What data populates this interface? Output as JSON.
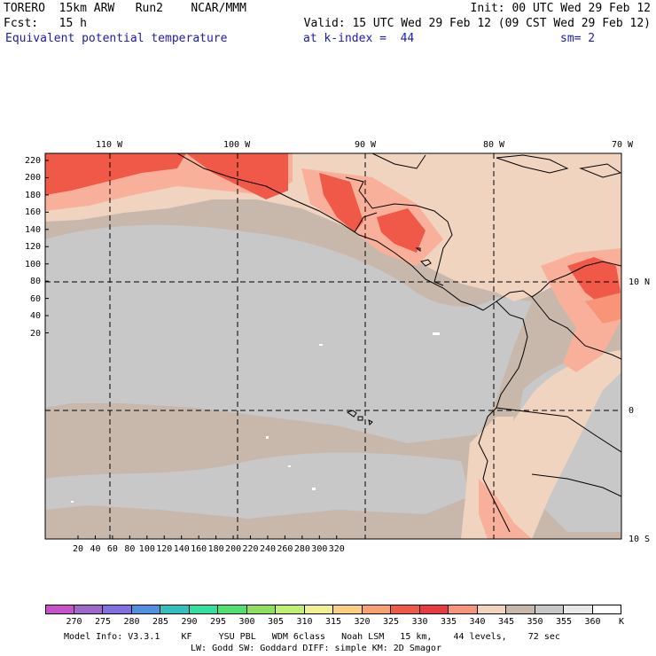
{
  "header": {
    "line1_left": "TORERO  15km ARW   Run2    NCAR/MMM",
    "line1_right": "Init: 00 UTC Wed 29 Feb 12",
    "line2_left": "Fcst:   15 h",
    "line2_right": "Valid: 15 UTC Wed 29 Feb 12 (09 CST Wed 29 Feb 12)",
    "field_name": "Equivalent potential temperature",
    "level": "at k-index =  44",
    "smoothing": "sm= 2"
  },
  "map": {
    "lon_labels": [
      "110 W",
      "100 W",
      "90 W",
      "80 W",
      "70 W"
    ],
    "lat_labels_right": [
      "10 N",
      "0",
      "10 S"
    ],
    "y_ticks": [
      "220",
      "200",
      "180",
      "160",
      "140",
      "120",
      "100",
      "80",
      "60",
      "40",
      "20"
    ],
    "x_ticks": [
      "20",
      "40",
      "60",
      "80",
      "100",
      "120",
      "140",
      "160",
      "180",
      "200",
      "220",
      "240",
      "260",
      "280",
      "300",
      "320"
    ],
    "colors": {
      "base": "#c8b8ac",
      "gray": "#c8c8c8",
      "peach": "#f0d4c0",
      "salmon_light": "#f8b09a",
      "salmon": "#f89478",
      "red": "#f05848",
      "red_dark": "#e83a40",
      "white": "#ffffff"
    }
  },
  "colorbar": {
    "labels": [
      "270",
      "275",
      "280",
      "285",
      "290",
      "295",
      "300",
      "305",
      "310",
      "315",
      "320",
      "325",
      "330",
      "335",
      "340",
      "345",
      "350",
      "355",
      "360"
    ],
    "unit": "K",
    "colors": [
      "#c850c8",
      "#a068c8",
      "#8070e0",
      "#5090e0",
      "#30c0c0",
      "#30e0a0",
      "#50e070",
      "#90e060",
      "#c0f070",
      "#f0f090",
      "#f8d080",
      "#f8a070",
      "#f05848",
      "#e83a40",
      "#f89478",
      "#f0d4c0",
      "#c8b8ac",
      "#c8c8c8",
      "#e8e8e8",
      "#ffffff"
    ]
  },
  "footer": {
    "line1": "Model Info: V3.3.1    KF     YSU PBL   WDM 6class   Noah LSM   15 km,    44 levels,    72 sec",
    "line2": "LW: Godd SW: Goddard DIFF: simple KM: 2D Smagor"
  }
}
